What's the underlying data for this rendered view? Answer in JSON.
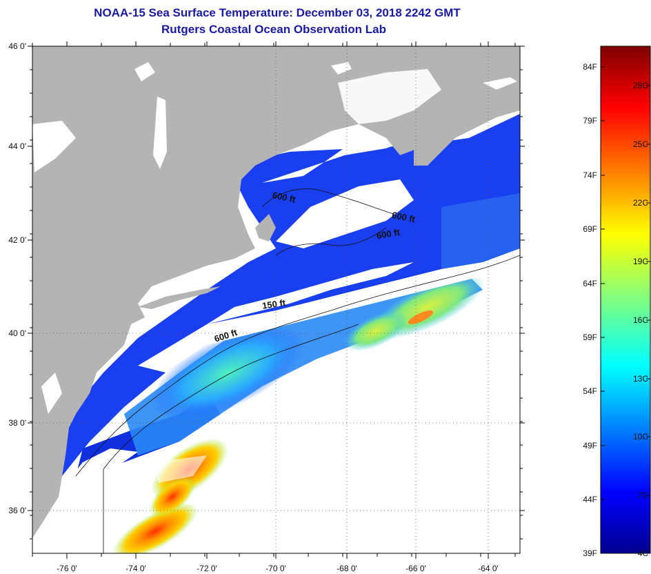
{
  "title": "NOAA-15 Sea Surface Temperature:  December 03, 2018 2242 GMT",
  "subtitle": "Rutgers Coastal Ocean Observation Lab",
  "map": {
    "lat_labels": [
      "46 0'",
      "44 0'",
      "42 0'",
      "40 0'",
      "38 0'",
      "36 0'"
    ],
    "lon_labels": [
      "-76 0'",
      "-74 0'",
      "-72 0'",
      "-70 0'",
      "-68 0'",
      "-66 0'",
      "-64 0'"
    ],
    "isobath_labels": [
      "600 ft",
      "600 ft",
      "600 ft",
      "150 ft",
      "600 ft"
    ],
    "colors": {
      "land": "#b4b4b4",
      "cloud": "#ffffff",
      "frame": "#000000"
    }
  },
  "colorbar": {
    "f_labels": [
      "84F",
      "79F",
      "74F",
      "69F",
      "64F",
      "59F",
      "54F",
      "49F",
      "44F",
      "39F"
    ],
    "c_labels": [
      "28C",
      "25C",
      "22C",
      "19C",
      "16C",
      "13C",
      "10C",
      "7C",
      "4C"
    ],
    "colormap": [
      "#00008f",
      "#0000ff",
      "#0080ff",
      "#00ffff",
      "#80ff80",
      "#ffff00",
      "#ff8000",
      "#ff0000",
      "#800000"
    ]
  }
}
